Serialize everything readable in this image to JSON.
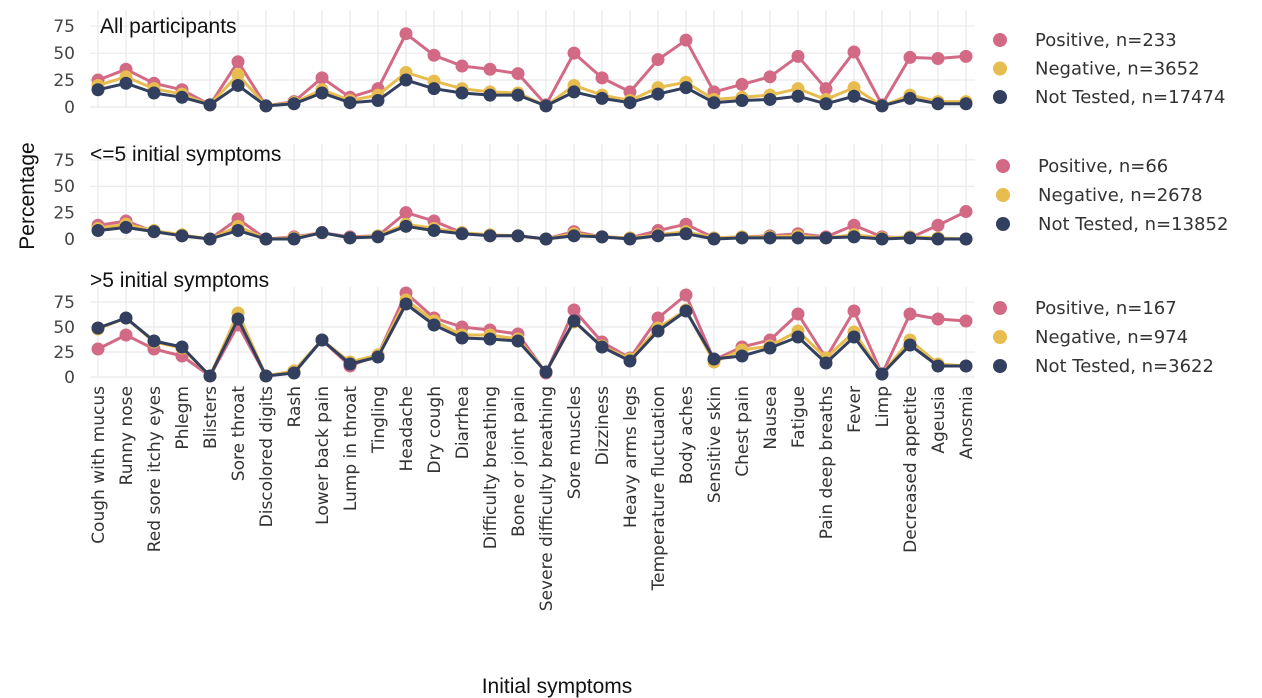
{
  "chart_data": {
    "type": "line",
    "xlabel": "Initial symptoms",
    "ylabel": "Percentage",
    "ylim": [
      0,
      90
    ],
    "yticks": [
      0,
      25,
      50,
      75
    ],
    "grid": true,
    "legend_placement": "right",
    "colors": {
      "Positive": "#d36a85",
      "Negative": "#e8bd4f",
      "Not Tested": "#323f5e"
    },
    "categories": [
      "Cough with mucus",
      "Runny nose",
      "Red sore itchy eyes",
      "Phlegm",
      "Blisters",
      "Sore throat",
      "Discolored digits",
      "Rash",
      "Lower back pain",
      "Lump in throat",
      "Tingling",
      "Headache",
      "Dry cough",
      "Diarrhea",
      "Difficulty breathing",
      "Bone or joint pain",
      "Severe difficulty breathing",
      "Sore muscles",
      "Dizziness",
      "Heavy arms legs",
      "Temperature fluctuation",
      "Body aches",
      "Sensitive skin",
      "Chest pain",
      "Nausea",
      "Fatigue",
      "Pain deep breaths",
      "Fever",
      "Limp",
      "Decreased appetite",
      "Ageusia",
      "Anosmia"
    ],
    "panels": [
      {
        "title": "All participants",
        "series": [
          {
            "name": "Positive",
            "legend": "Positive, n=233",
            "values": [
              25,
              35,
              22,
              16,
              2,
              42,
              1,
              5,
              27,
              9,
              17,
              68,
              48,
              38,
              35,
              31,
              2,
              50,
              27,
              14,
              44,
              62,
              14,
              21,
              28,
              47,
              17,
              51,
              2,
              46,
              45,
              47
            ]
          },
          {
            "name": "Negative",
            "legend": "Negative, n=3652",
            "values": [
              20,
              28,
              17,
              12,
              2,
              30,
              1,
              4,
              16,
              6,
              11,
              32,
              24,
              17,
              14,
              13,
              1,
              20,
              11,
              6,
              18,
              23,
              7,
              9,
              11,
              17,
              7,
              18,
              1,
              11,
              5,
              5
            ]
          },
          {
            "name": "Not Tested",
            "legend": "Not Tested, n=17474",
            "values": [
              16,
              22,
              13,
              9,
              2,
              20,
              1,
              3,
              13,
              4,
              6,
              25,
              17,
              13,
              11,
              11,
              1,
              14,
              8,
              4,
              12,
              18,
              4,
              6,
              7,
              10,
              3,
              10,
              1,
              8,
              3,
              3
            ]
          }
        ]
      },
      {
        "title": "<=5 initial symptoms",
        "series": [
          {
            "name": "Positive",
            "legend": "Positive, n=66",
            "values": [
              13,
              17,
              7,
              3,
              0,
              19,
              0,
              2,
              6,
              2,
              3,
              25,
              17,
              6,
              3,
              3,
              0,
              7,
              2,
              1,
              8,
              14,
              1,
              2,
              3,
              5,
              2,
              13,
              2,
              1,
              13,
              26
            ]
          },
          {
            "name": "Negative",
            "legend": "Negative, n=2678",
            "values": [
              10,
              14,
              8,
              4,
              0,
              12,
              0,
              1,
              6,
              1,
              3,
              14,
              10,
              6,
              4,
              3,
              0,
              5,
              2,
              1,
              4,
              7,
              1,
              2,
              2,
              3,
              1,
              4,
              1,
              2,
              1,
              0
            ]
          },
          {
            "name": "Not Tested",
            "legend": "Not Tested, n=13852",
            "values": [
              8,
              11,
              7,
              3,
              0,
              8,
              0,
              0,
              6,
              1,
              2,
              12,
              8,
              5,
              3,
              3,
              0,
              3,
              2,
              0,
              3,
              5,
              0,
              1,
              1,
              1,
              1,
              2,
              0,
              1,
              0,
              0
            ]
          }
        ]
      },
      {
        "title": ">5 initial symptoms",
        "series": [
          {
            "name": "Positive",
            "legend": "Positive, n=167",
            "values": [
              28,
              42,
              28,
              21,
              1,
              52,
              1,
              6,
              37,
              11,
              22,
              84,
              59,
              50,
              47,
              43,
              4,
              67,
              35,
              19,
              59,
              82,
              17,
              30,
              37,
              63,
              19,
              66,
              3,
              63,
              58,
              56
            ]
          },
          {
            "name": "Negative",
            "legend": "Negative, n=974",
            "values": [
              48,
              59,
              35,
              29,
              1,
              64,
              1,
              6,
              37,
              15,
              22,
              77,
              56,
              42,
              42,
              38,
              5,
              55,
              31,
              18,
              49,
              67,
              15,
              27,
              31,
              46,
              19,
              45,
              3,
              37,
              13,
              11
            ]
          },
          {
            "name": "Not Tested",
            "legend": "Not Tested, n=3622",
            "values": [
              49,
              59,
              36,
              30,
              1,
              58,
              1,
              4,
              37,
              13,
              20,
              73,
              52,
              39,
              38,
              36,
              5,
              56,
              30,
              16,
              46,
              66,
              18,
              21,
              29,
              40,
              14,
              40,
              3,
              32,
              11,
              11
            ]
          }
        ]
      }
    ]
  }
}
